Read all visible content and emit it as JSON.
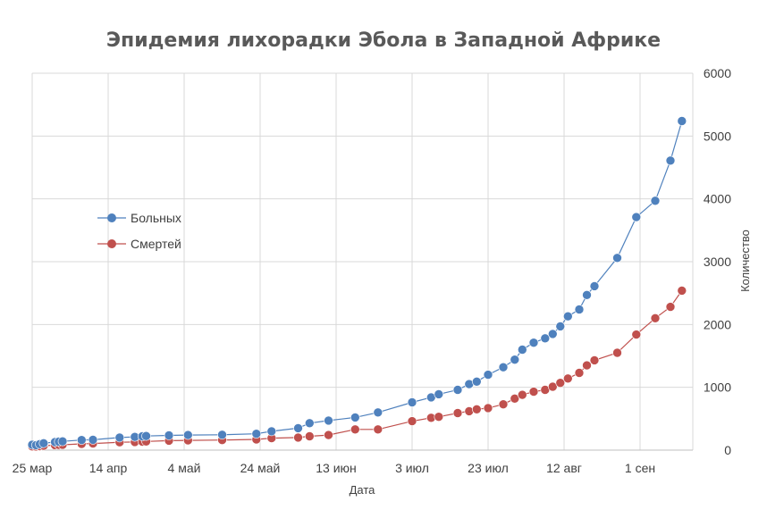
{
  "chart_data": {
    "type": "line",
    "title": "Эпидемия лихорадки Эбола в Западной Африке",
    "xlabel": "Дата",
    "ylabel": "Количество",
    "x_axis": {
      "type": "date",
      "range": [
        "2014-03-25",
        "2014-09-11"
      ],
      "ticks": [
        {
          "date": "2014-03-25",
          "label": "25 мар"
        },
        {
          "date": "2014-04-14",
          "label": "14 апр"
        },
        {
          "date": "2014-05-04",
          "label": "4 май"
        },
        {
          "date": "2014-05-24",
          "label": "24 май"
        },
        {
          "date": "2014-06-13",
          "label": "13 июн"
        },
        {
          "date": "2014-07-03",
          "label": "3 июл"
        },
        {
          "date": "2014-07-23",
          "label": "23 июл"
        },
        {
          "date": "2014-08-12",
          "label": "12 авг"
        },
        {
          "date": "2014-09-01",
          "label": "1 сен"
        }
      ]
    },
    "y_axis": {
      "position": "right",
      "range": [
        0,
        6000
      ],
      "ticks": [
        0,
        1000,
        2000,
        3000,
        4000,
        5000,
        6000
      ]
    },
    "grid": true,
    "legend": {
      "placement": "left"
    },
    "series": [
      {
        "name": "Больных",
        "color": "#4f81bd",
        "points": [
          [
            "2014-03-25",
            86
          ],
          [
            "2014-03-26",
            80
          ],
          [
            "2014-03-27",
            95
          ],
          [
            "2014-03-28",
            110
          ],
          [
            "2014-03-31",
            130
          ],
          [
            "2014-04-01",
            135
          ],
          [
            "2014-04-02",
            140
          ],
          [
            "2014-04-07",
            160
          ],
          [
            "2014-04-10",
            165
          ],
          [
            "2014-04-17",
            200
          ],
          [
            "2014-04-21",
            210
          ],
          [
            "2014-04-23",
            220
          ],
          [
            "2014-04-24",
            225
          ],
          [
            "2014-04-30",
            235
          ],
          [
            "2014-05-05",
            240
          ],
          [
            "2014-05-14",
            245
          ],
          [
            "2014-05-23",
            260
          ],
          [
            "2014-05-27",
            300
          ],
          [
            "2014-06-03",
            350
          ],
          [
            "2014-06-06",
            430
          ],
          [
            "2014-06-11",
            470
          ],
          [
            "2014-06-18",
            520
          ],
          [
            "2014-06-24",
            600
          ],
          [
            "2014-07-03",
            760
          ],
          [
            "2014-07-08",
            840
          ],
          [
            "2014-07-10",
            890
          ],
          [
            "2014-07-15",
            960
          ],
          [
            "2014-07-18",
            1050
          ],
          [
            "2014-07-20",
            1090
          ],
          [
            "2014-07-23",
            1200
          ],
          [
            "2014-07-27",
            1320
          ],
          [
            "2014-07-30",
            1440
          ],
          [
            "2014-08-01",
            1600
          ],
          [
            "2014-08-04",
            1710
          ],
          [
            "2014-08-07",
            1780
          ],
          [
            "2014-08-09",
            1850
          ],
          [
            "2014-08-11",
            1970
          ],
          [
            "2014-08-13",
            2130
          ],
          [
            "2014-08-16",
            2240
          ],
          [
            "2014-08-18",
            2470
          ],
          [
            "2014-08-20",
            2610
          ],
          [
            "2014-08-26",
            3060
          ],
          [
            "2014-08-31",
            3710
          ],
          [
            "2014-09-05",
            3970
          ],
          [
            "2014-09-09",
            4610
          ],
          [
            "2014-09-12",
            5240
          ]
        ]
      },
      {
        "name": "Смертей",
        "color": "#c0504d",
        "points": [
          [
            "2014-03-25",
            60
          ],
          [
            "2014-03-26",
            58
          ],
          [
            "2014-03-27",
            62
          ],
          [
            "2014-03-28",
            70
          ],
          [
            "2014-03-31",
            80
          ],
          [
            "2014-04-01",
            82
          ],
          [
            "2014-04-02",
            85
          ],
          [
            "2014-04-07",
            100
          ],
          [
            "2014-04-10",
            105
          ],
          [
            "2014-04-17",
            125
          ],
          [
            "2014-04-21",
            130
          ],
          [
            "2014-04-23",
            135
          ],
          [
            "2014-04-24",
            138
          ],
          [
            "2014-04-30",
            150
          ],
          [
            "2014-05-05",
            155
          ],
          [
            "2014-05-14",
            160
          ],
          [
            "2014-05-23",
            170
          ],
          [
            "2014-05-27",
            190
          ],
          [
            "2014-06-03",
            200
          ],
          [
            "2014-06-06",
            220
          ],
          [
            "2014-06-11",
            240
          ],
          [
            "2014-06-18",
            330
          ],
          [
            "2014-06-24",
            330
          ],
          [
            "2014-07-03",
            460
          ],
          [
            "2014-07-08",
            515
          ],
          [
            "2014-07-10",
            530
          ],
          [
            "2014-07-15",
            590
          ],
          [
            "2014-07-18",
            620
          ],
          [
            "2014-07-20",
            650
          ],
          [
            "2014-07-23",
            670
          ],
          [
            "2014-07-27",
            730
          ],
          [
            "2014-07-30",
            820
          ],
          [
            "2014-08-01",
            880
          ],
          [
            "2014-08-04",
            930
          ],
          [
            "2014-08-07",
            960
          ],
          [
            "2014-08-09",
            1010
          ],
          [
            "2014-08-11",
            1070
          ],
          [
            "2014-08-13",
            1140
          ],
          [
            "2014-08-16",
            1230
          ],
          [
            "2014-08-18",
            1350
          ],
          [
            "2014-08-20",
            1430
          ],
          [
            "2014-08-26",
            1550
          ],
          [
            "2014-08-31",
            1840
          ],
          [
            "2014-09-05",
            2100
          ],
          [
            "2014-09-09",
            2280
          ],
          [
            "2014-09-12",
            2540
          ]
        ]
      }
    ]
  }
}
